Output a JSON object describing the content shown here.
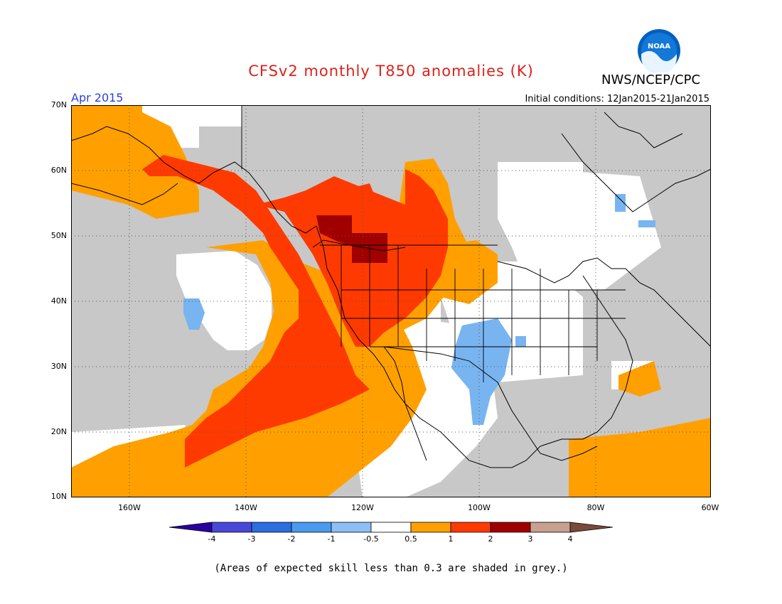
{
  "title": "CFSv2 monthly T850 anomalies (K)",
  "agency": "NWS/NCEP/CPC",
  "logo_text": "NOAA",
  "month": "Apr 2015",
  "initial_conditions": "Initial conditions: 12Jan2015-21Jan2015",
  "footer": "(Areas of expected skill less than 0.3 are shaded in grey.)",
  "map": {
    "lon_range": [
      -172,
      -60
    ],
    "lat_range": [
      10,
      70
    ],
    "lat_ticks": [
      "70N",
      "60N",
      "50N",
      "40N",
      "30N",
      "20N",
      "10N"
    ],
    "lon_ticks": [
      "160W",
      "140W",
      "120W",
      "100W",
      "80W",
      "60W"
    ],
    "colors": {
      "grey": "#c8c8c8",
      "blue_light": "#78b4f0",
      "orange": "#ffa000",
      "red": "#ff3a00",
      "darkred": "#a00000",
      "white": "#ffffff"
    }
  },
  "colorbar": {
    "labels": [
      "-4",
      "-3",
      "-2",
      "-1",
      "-0.5",
      "0.5",
      "1",
      "2",
      "3",
      "4"
    ],
    "colors": [
      "#2b00a0",
      "#4848d8",
      "#2a6ee0",
      "#4a9af0",
      "#8cc0f5",
      "#ffffff",
      "#ffa000",
      "#ff3a00",
      "#a00000",
      "#c8a090",
      "#7a4a3a"
    ]
  }
}
